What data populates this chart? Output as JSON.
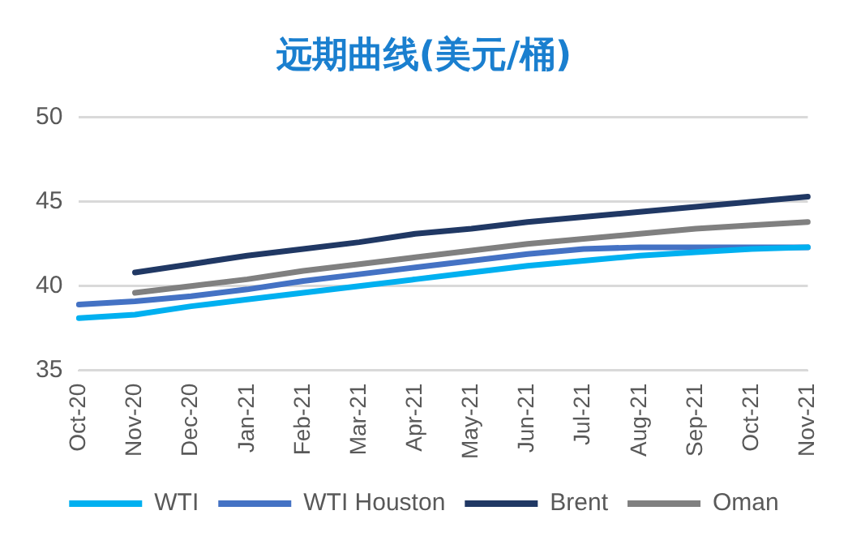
{
  "chart_data": {
    "type": "line",
    "title": "远期曲线(美元/桶)",
    "categories": [
      "Oct-20",
      "Nov-20",
      "Dec-20",
      "Jan-21",
      "Feb-21",
      "Mar-21",
      "Apr-21",
      "May-21",
      "Jun-21",
      "Jul-21",
      "Aug-21",
      "Sep-21",
      "Oct-21",
      "Nov-21"
    ],
    "series": [
      {
        "name": "WTI",
        "color": "#00b0f0",
        "values": [
          38.1,
          38.3,
          38.8,
          39.2,
          39.6,
          40.0,
          40.4,
          40.8,
          41.2,
          41.5,
          41.8,
          42.0,
          42.2,
          42.3
        ]
      },
      {
        "name": "WTI Houston",
        "color": "#4472c4",
        "values": [
          38.9,
          39.1,
          39.4,
          39.8,
          40.3,
          40.7,
          41.1,
          41.5,
          41.9,
          42.2,
          42.3,
          42.3,
          42.3,
          42.3
        ]
      },
      {
        "name": "Brent",
        "color": "#203864",
        "values": [
          null,
          40.8,
          41.3,
          41.8,
          42.2,
          42.6,
          43.1,
          43.4,
          43.8,
          44.1,
          44.4,
          44.7,
          45.0,
          45.3
        ]
      },
      {
        "name": "Oman",
        "color": "#808080",
        "values": [
          null,
          39.6,
          40.0,
          40.4,
          40.9,
          41.3,
          41.7,
          42.1,
          42.5,
          42.8,
          43.1,
          43.4,
          43.6,
          43.8
        ]
      }
    ],
    "ylim": [
      35,
      50
    ],
    "yticks": [
      35,
      40,
      45,
      50
    ],
    "grid": "y",
    "legend": "bottom",
    "marker": "none",
    "line_style": "solid"
  }
}
